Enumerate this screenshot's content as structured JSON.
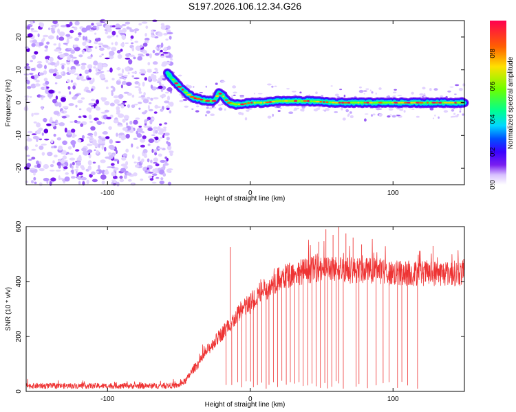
{
  "title": "S197.2026.106.12.34.G26",
  "chart_data": [
    {
      "type": "heatmap",
      "name": "spectrogram",
      "xlabel": "Height of straight line (km)",
      "ylabel": "Frequency (Hz)",
      "xlim": [
        -157,
        150
      ],
      "ylim": [
        -25,
        25
      ],
      "xticks": [
        -100,
        0,
        100
      ],
      "yticks": [
        -20,
        -10,
        0,
        10,
        20
      ],
      "noise_region_x": [
        -157,
        -55
      ],
      "noise_density": 0.6,
      "ridge": {
        "description": "signal ridge (frequency vs height)",
        "x": [
          -58,
          -55,
          -50,
          -45,
          -40,
          -35,
          -30,
          -25,
          -22,
          -20,
          -18,
          -15,
          -10,
          -5,
          0,
          10,
          20,
          40,
          60,
          80,
          100,
          120,
          140,
          150
        ],
        "y": [
          9,
          7.5,
          5,
          3,
          1.5,
          1,
          0.5,
          0.5,
          3,
          2.5,
          1.5,
          0,
          -0.5,
          -0.5,
          0,
          0,
          0.5,
          0.5,
          0,
          0,
          0,
          0,
          0,
          0
        ]
      },
      "colorbar": {
        "label": "Normalized spectral amplitude",
        "ticks": [
          0.0,
          0.2,
          0.4,
          0.6,
          0.8
        ],
        "tick_labels": [
          "0.0",
          "0.2",
          "0.4",
          "0.6",
          "0.8"
        ],
        "range": [
          0,
          1
        ]
      },
      "palette": [
        "#ffffff",
        "#dcc8ff",
        "#7a1ff0",
        "#3a00ff",
        "#0050ff",
        "#00d8ff",
        "#00ff90",
        "#7cff00",
        "#ffd000",
        "#ff5000",
        "#ff0040"
      ]
    },
    {
      "type": "line",
      "name": "snr",
      "xlabel": "Height of straight line (km)",
      "ylabel": "SNR (10 * v/v)",
      "xlim": [
        -157,
        150
      ],
      "ylim": [
        0,
        600
      ],
      "xticks": [
        -100,
        0,
        100
      ],
      "yticks": [
        0,
        200,
        400,
        600
      ],
      "color": "#ee3333",
      "envelope": {
        "x": [
          -157,
          -60,
          -50,
          -45,
          -40,
          -35,
          -30,
          -25,
          -20,
          -15,
          -10,
          -5,
          0,
          5,
          10,
          15,
          20,
          30,
          40,
          50,
          60,
          70,
          80,
          90,
          100,
          110,
          120,
          130,
          140,
          150
        ],
        "y": [
          20,
          20,
          22,
          40,
          80,
          110,
          150,
          180,
          210,
          240,
          270,
          300,
          320,
          350,
          370,
          390,
          410,
          430,
          440,
          450,
          450,
          440,
          440,
          440,
          430,
          430,
          430,
          430,
          430,
          430
        ]
      },
      "noise_amplitude": 8,
      "spikes_up": [
        {
          "x": -14,
          "y": 525
        },
        {
          "x": 48,
          "y": 545
        },
        {
          "x": 53,
          "y": 590
        },
        {
          "x": 58,
          "y": 570
        },
        {
          "x": 62,
          "y": 598
        },
        {
          "x": 67,
          "y": 575
        },
        {
          "x": 72,
          "y": 560
        },
        {
          "x": 78,
          "y": 535
        },
        {
          "x": 128,
          "y": 530
        }
      ],
      "drops": [
        -17,
        -13,
        -9,
        -6,
        -3,
        0,
        2,
        5,
        8,
        11,
        13,
        16,
        19,
        22,
        25,
        28,
        31,
        34,
        37,
        40,
        43,
        46,
        49,
        52,
        54,
        57,
        60,
        62,
        65,
        74,
        76,
        82,
        88,
        93,
        97,
        103,
        106,
        110,
        117
      ]
    }
  ]
}
